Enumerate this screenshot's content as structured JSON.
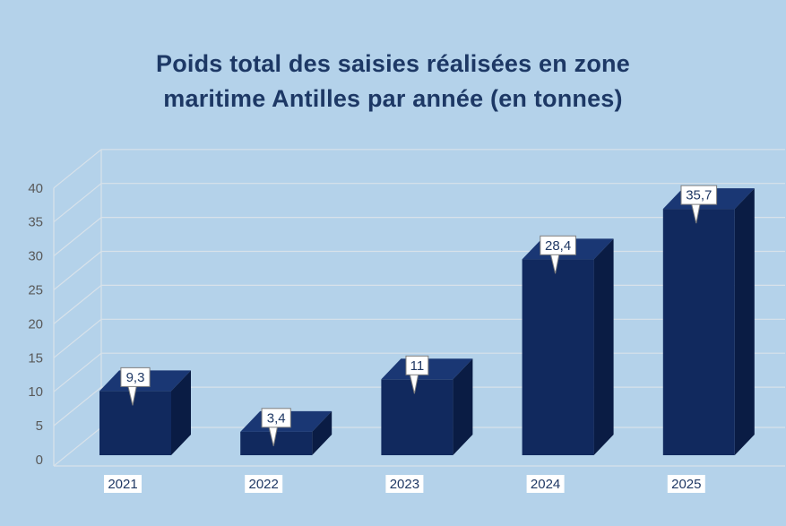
{
  "title": {
    "line1": "Poids total des saisies réalisées en zone",
    "line2": "maritime Antilles par année (en tonnes)"
  },
  "chart_data": {
    "type": "bar",
    "style": "3d-column",
    "title": "Poids total des saisies réalisées en zone maritime Antilles par année (en tonnes)",
    "unit": "tonnes",
    "categories": [
      "2021",
      "2022",
      "2023",
      "2024",
      "2025"
    ],
    "values": [
      9.3,
      3.4,
      11,
      28.4,
      35.7
    ],
    "value_labels": [
      "9,3",
      "3,4",
      "11",
      "28,4",
      "35,7"
    ],
    "ylim": [
      0,
      40
    ],
    "yticks": [
      0,
      5,
      10,
      15,
      20,
      25,
      30,
      35,
      40
    ],
    "grid": true,
    "legend": false
  },
  "colors": {
    "background": "#b4d2ea",
    "title_text": "#1d3865",
    "bar_front": "#11295e",
    "bar_top": "#1a3774",
    "bar_side": "#0a1c44",
    "gridline": "#d8e2ea",
    "y_label_text": "#595959",
    "x_label_text": "#1f3864",
    "x_label_chip": "#ffffff",
    "callout_bg": "#ffffff",
    "callout_border": "#7f7f7f",
    "callout_text": "#1f3864"
  }
}
